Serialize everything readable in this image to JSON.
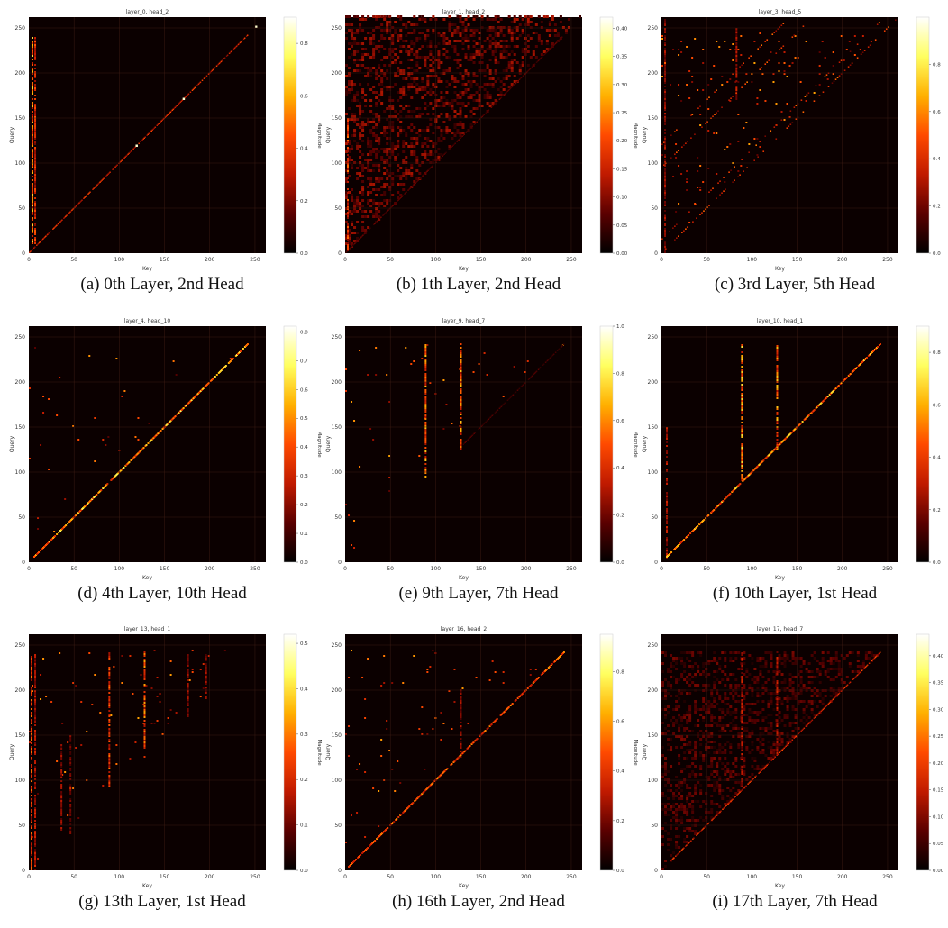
{
  "colors": {
    "background": "#0b0000",
    "gridline": "#3a1a12",
    "colormap": [
      "#000000",
      "#5a0000",
      "#c01a00",
      "#ff4a00",
      "#ffb000",
      "#ffff60",
      "#ffffff"
    ]
  },
  "chart_data": [
    {
      "type": "heatmap",
      "id": "a",
      "title": "layer_0, head_2",
      "caption": "(a) 0th Layer, 2nd Head",
      "xlabel": "Key",
      "ylabel": "Query",
      "xlim": [
        0,
        262
      ],
      "ylim": [
        0,
        262
      ],
      "xticks": [
        "0",
        "50",
        "100",
        "150",
        "200",
        "250"
      ],
      "yticks": [
        "0",
        "50",
        "100",
        "150",
        "200",
        "250"
      ],
      "colorbar": {
        "label": "Magnitude",
        "range": [
          0,
          0.9
        ],
        "ticks": [
          "0.0",
          "0.2",
          "0.4",
          "0.6",
          "0.8"
        ]
      },
      "pattern": {
        "diagonal_end": 242,
        "diagonal_intensity": 0.35,
        "columns": [
          {
            "key": 3,
            "from": 10,
            "to": 240,
            "intensity": 0.6
          },
          {
            "key": 6,
            "from": 10,
            "to": 240,
            "intensity": 0.4
          }
        ],
        "diagonal_bright_spots": [
          118,
          170,
          250
        ]
      }
    },
    {
      "type": "heatmap",
      "id": "b",
      "title": "layer_1, head_2",
      "caption": "(b) 1th Layer, 2nd Head",
      "xlabel": "Key",
      "ylabel": "Query",
      "xlim": [
        0,
        262
      ],
      "ylim": [
        0,
        262
      ],
      "xticks": [
        "0",
        "50",
        "100",
        "150",
        "200",
        "250"
      ],
      "yticks": [
        "0",
        "50",
        "100",
        "150",
        "200",
        "250"
      ],
      "colorbar": {
        "label": "Magnitude",
        "range": [
          0,
          0.42
        ],
        "ticks": [
          "0.00",
          "0.05",
          "0.10",
          "0.15",
          "0.20",
          "0.25",
          "0.30",
          "0.35",
          "0.40"
        ]
      },
      "pattern": {
        "triangle_fill": 0.25,
        "triangle_end": 262,
        "diagonal_intensity": 0.15,
        "columns": [
          {
            "key": 2,
            "from": 0,
            "to": 150,
            "intensity": 0.45
          }
        ]
      }
    },
    {
      "type": "heatmap",
      "id": "c",
      "title": "layer_3, head_5",
      "caption": "(c) 3rd Layer, 5th Head",
      "xlabel": "Key",
      "ylabel": "Query",
      "xlim": [
        0,
        262
      ],
      "ylim": [
        0,
        262
      ],
      "xticks": [
        "0",
        "50",
        "100",
        "150",
        "200",
        "250"
      ],
      "yticks": [
        "0",
        "50",
        "100",
        "150",
        "200",
        "250"
      ],
      "colorbar": {
        "label": "Magnitude",
        "range": [
          0,
          1.0
        ],
        "ticks": [
          "0.0",
          "0.2",
          "0.4",
          "0.6",
          "0.8"
        ]
      },
      "pattern": {
        "sparse": 0.04,
        "offsets": [
          0,
          15,
          95,
          120
        ],
        "offset_intensity": 0.45,
        "columns": [
          {
            "key": 3,
            "from": 0,
            "to": 260,
            "intensity": 0.25
          },
          {
            "key": 82,
            "from": 170,
            "to": 250,
            "intensity": 0.3
          }
        ]
      }
    },
    {
      "type": "heatmap",
      "id": "d",
      "title": "layer_4, head_10",
      "caption": "(d) 4th Layer, 10th Head",
      "xlabel": "Key",
      "ylabel": "Query",
      "xlim": [
        0,
        262
      ],
      "ylim": [
        0,
        262
      ],
      "xticks": [
        "0",
        "50",
        "100",
        "150",
        "200",
        "250"
      ],
      "yticks": [
        "0",
        "50",
        "100",
        "150",
        "200",
        "250"
      ],
      "colorbar": {
        "label": "Magnitude",
        "range": [
          0,
          0.82
        ],
        "ticks": [
          "0.0",
          "0.1",
          "0.2",
          "0.3",
          "0.4",
          "0.5",
          "0.6",
          "0.7",
          "0.8"
        ]
      },
      "pattern": {
        "diagonal_start": 5,
        "diagonal_end": 242,
        "diagonal_intensity": 0.6,
        "diagonal_width": 2,
        "sparse": 0.01
      }
    },
    {
      "type": "heatmap",
      "id": "e",
      "title": "layer_9, head_7",
      "caption": "(e) 9th Layer, 7th Head",
      "xlabel": "Key",
      "ylabel": "Query",
      "xlim": [
        0,
        262
      ],
      "ylim": [
        0,
        262
      ],
      "xticks": [
        "0",
        "50",
        "100",
        "150",
        "200",
        "250"
      ],
      "yticks": [
        "0",
        "50",
        "100",
        "150",
        "200",
        "250"
      ],
      "colorbar": {
        "label": "Magnitude",
        "range": [
          0,
          1.0
        ],
        "ticks": [
          "0.0",
          "0.2",
          "0.4",
          "0.6",
          "0.8",
          "1.0"
        ]
      },
      "pattern": {
        "sparse": 0.015,
        "columns": [
          {
            "key": 88,
            "from": 90,
            "to": 242,
            "intensity": 0.55
          },
          {
            "key": 127,
            "from": 125,
            "to": 242,
            "intensity": 0.55
          }
        ],
        "diagonal_start": 130,
        "diagonal_end": 242,
        "diagonal_intensity": 0.12
      }
    },
    {
      "type": "heatmap",
      "id": "f",
      "title": "layer_10, head_1",
      "caption": "(f) 10th Layer, 1st Head",
      "xlabel": "Key",
      "ylabel": "Query",
      "xlim": [
        0,
        262
      ],
      "ylim": [
        0,
        262
      ],
      "xticks": [
        "0",
        "50",
        "100",
        "150",
        "200",
        "250"
      ],
      "yticks": [
        "0",
        "50",
        "100",
        "150",
        "200",
        "250"
      ],
      "colorbar": {
        "label": "Magnitude",
        "range": [
          0,
          0.9
        ],
        "ticks": [
          "0.0",
          "0.2",
          "0.4",
          "0.6",
          "0.8"
        ]
      },
      "pattern": {
        "diagonal_start": 5,
        "diagonal_end": 242,
        "diagonal_intensity": 0.55,
        "diagonal_width": 2,
        "columns": [
          {
            "key": 88,
            "from": 90,
            "to": 242,
            "intensity": 0.6
          },
          {
            "key": 127,
            "from": 125,
            "to": 242,
            "intensity": 0.55
          },
          {
            "key": 5,
            "from": 0,
            "to": 150,
            "intensity": 0.3
          }
        ]
      }
    },
    {
      "type": "heatmap",
      "id": "g",
      "title": "layer_13, head_1",
      "caption": "(g) 13th Layer, 1st Head",
      "xlabel": "Key",
      "ylabel": "Query",
      "xlim": [
        0,
        262
      ],
      "ylim": [
        0,
        262
      ],
      "xticks": [
        "0",
        "50",
        "100",
        "150",
        "200",
        "250"
      ],
      "yticks": [
        "0",
        "50",
        "100",
        "150",
        "200",
        "250"
      ],
      "colorbar": {
        "label": "Magnitude",
        "range": [
          0,
          0.52
        ],
        "ticks": [
          "0.0",
          "0.1",
          "0.2",
          "0.3",
          "0.4",
          "0.5"
        ]
      },
      "pattern": {
        "columns": [
          {
            "key": 2,
            "from": 0,
            "to": 240,
            "intensity": 0.45
          },
          {
            "key": 6,
            "from": 0,
            "to": 240,
            "intensity": 0.3
          },
          {
            "key": 88,
            "from": 90,
            "to": 242,
            "intensity": 0.45
          },
          {
            "key": 127,
            "from": 125,
            "to": 242,
            "intensity": 0.5
          },
          {
            "key": 35,
            "from": 40,
            "to": 140,
            "intensity": 0.25
          },
          {
            "key": 45,
            "from": 40,
            "to": 150,
            "intensity": 0.2
          },
          {
            "key": 175,
            "from": 170,
            "to": 240,
            "intensity": 0.25
          },
          {
            "key": 195,
            "from": 190,
            "to": 240,
            "intensity": 0.25
          }
        ],
        "sparse": 0.02
      }
    },
    {
      "type": "heatmap",
      "id": "h",
      "title": "layer_16, head_2",
      "caption": "(h) 16th Layer, 2nd Head",
      "xlabel": "Key",
      "ylabel": "Query",
      "xlim": [
        0,
        262
      ],
      "ylim": [
        0,
        262
      ],
      "xticks": [
        "0",
        "50",
        "100",
        "150",
        "200",
        "250"
      ],
      "yticks": [
        "0",
        "50",
        "100",
        "150",
        "200",
        "250"
      ],
      "colorbar": {
        "label": "Magnitude",
        "range": [
          0,
          0.95
        ],
        "ticks": [
          "0.0",
          "0.2",
          "0.4",
          "0.6",
          "0.8"
        ]
      },
      "pattern": {
        "diagonal_start": 2,
        "diagonal_end": 242,
        "diagonal_intensity": 0.45,
        "diagonal_width": 2,
        "sparse": 0.02,
        "columns": [
          {
            "key": 127,
            "from": 125,
            "to": 200,
            "intensity": 0.25
          }
        ]
      }
    },
    {
      "type": "heatmap",
      "id": "i",
      "title": "layer_17, head_7",
      "caption": "(i) 17th Layer, 7th Head",
      "xlabel": "Key",
      "ylabel": "Query",
      "xlim": [
        0,
        262
      ],
      "ylim": [
        0,
        262
      ],
      "xticks": [
        "0",
        "50",
        "100",
        "150",
        "200",
        "250"
      ],
      "yticks": [
        "0",
        "50",
        "100",
        "150",
        "200",
        "250"
      ],
      "colorbar": {
        "label": "",
        "range": [
          0,
          0.44
        ],
        "ticks": [
          "0.00",
          "0.05",
          "0.10",
          "0.15",
          "0.20",
          "0.25",
          "0.30",
          "0.35",
          "0.40"
        ]
      },
      "pattern": {
        "triangle_fill": 0.18,
        "triangle_end": 242,
        "diagonal_start": 10,
        "diagonal_end": 242,
        "diagonal_intensity": 0.35,
        "columns": [
          {
            "key": 88,
            "from": 90,
            "to": 242,
            "intensity": 0.3
          },
          {
            "key": 127,
            "from": 125,
            "to": 242,
            "intensity": 0.3
          }
        ]
      }
    }
  ]
}
